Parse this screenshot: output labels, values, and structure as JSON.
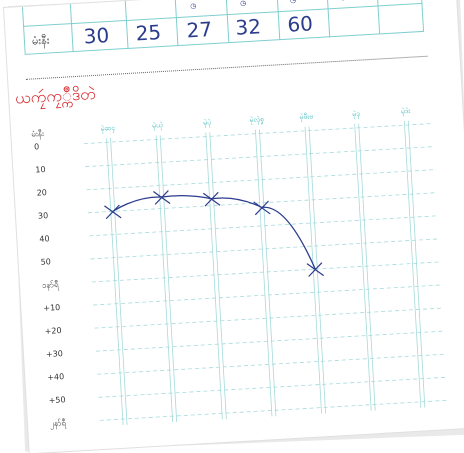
{
  "score_table": {
    "row_label": "မံးနီး",
    "values": [
      "30",
      "25",
      "27",
      "32",
      "60",
      "",
      ""
    ]
  },
  "section_title": "ယကၠဴကၠ္ကိဳဒိတဲ",
  "chart_data": {
    "type": "line",
    "title": "",
    "xlabel": "",
    "ylabel": "မံးနီး",
    "categories": [
      "မုဲဆၚ",
      "မုဲယုဲ",
      "မုဲပုဲ",
      "မုဲလုဲစၞ",
      "မုဲဖီးဗ",
      "မုဲဒ္ၚ",
      "မုဲဒဲး"
    ],
    "y_ticks": [
      "0",
      "10",
      "20",
      "30",
      "40",
      "50",
      "၁နာ်ရဳ",
      "+10",
      "+20",
      "+30",
      "+40",
      "+50",
      "၂နာ်ရဳ"
    ],
    "series": [
      {
        "values": [
          30,
          25,
          27,
          32,
          60,
          null,
          null
        ]
      }
    ],
    "ylim": [
      0,
      120
    ],
    "line_color": "#2b3c8d",
    "grid": true,
    "grid_color": "#a6dadb"
  }
}
